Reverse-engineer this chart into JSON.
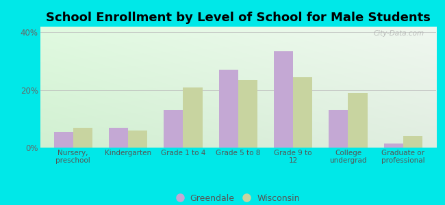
{
  "title": "School Enrollment by Level of School for Male Students",
  "categories": [
    "Nursery,\npreschool",
    "Kindergarten",
    "Grade 1 to 4",
    "Grade 5 to 8",
    "Grade 9 to\n12",
    "College\nundergrad",
    "Graduate or\nprofessional"
  ],
  "greendale": [
    5.5,
    7.0,
    13.0,
    27.0,
    33.5,
    13.0,
    1.5
  ],
  "wisconsin": [
    7.0,
    6.0,
    21.0,
    23.5,
    24.5,
    19.0,
    4.0
  ],
  "greendale_color": "#c4a8d4",
  "wisconsin_color": "#c8d4a0",
  "background_color": "#00e8e8",
  "title_fontsize": 13,
  "ylabel_ticks": [
    "0%",
    "20%",
    "40%"
  ],
  "yticks": [
    0,
    20,
    40
  ],
  "ylim": [
    0,
    42
  ],
  "bar_width": 0.35,
  "legend_labels": [
    "Greendale",
    "Wisconsin"
  ],
  "watermark": "City-Data.com"
}
